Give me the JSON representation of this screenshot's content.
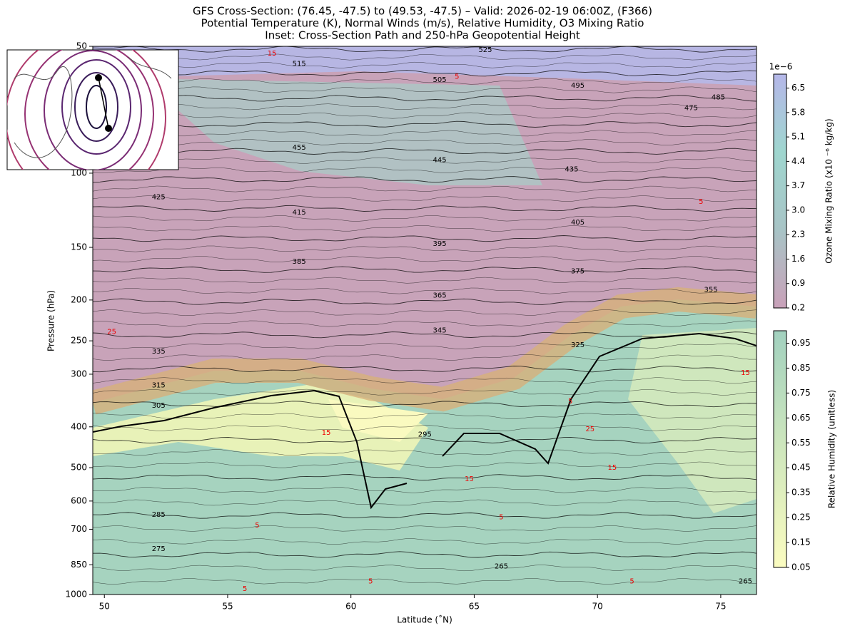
{
  "chart_data": {
    "type": "cross-section",
    "title": [
      "GFS Cross-Section: (76.45, -47.5) to (49.53, -47.5) – Valid: 2026-02-19 06:00Z, (F366)",
      "Potential Temperature (K), Normal Winds (m/s), Relative Humidity, O3 Mixing Ratio",
      "Inset: Cross-Section Path and 250-hPa Geopotential Height"
    ],
    "xlabel": "Latitude (˚N)",
    "ylabel": "Pressure (hPa)",
    "xlim": [
      49.53,
      76.45
    ],
    "xticks": [
      50,
      55,
      60,
      65,
      70,
      75
    ],
    "ylim": [
      1000,
      50
    ],
    "ylog": true,
    "yticks": [
      50,
      100,
      150,
      200,
      250,
      300,
      400,
      500,
      600,
      700,
      850,
      1000
    ],
    "theta_labels": [
      {
        "lat": 65.45,
        "p": 51,
        "value": 525
      },
      {
        "lat": 57.9,
        "p": 55,
        "value": 515
      },
      {
        "lat": 63.6,
        "p": 60,
        "value": 505
      },
      {
        "lat": 69.2,
        "p": 62,
        "value": 495
      },
      {
        "lat": 74.9,
        "p": 66,
        "value": 485
      },
      {
        "lat": 73.8,
        "p": 70,
        "value": 475
      },
      {
        "lat": 57.9,
        "p": 87,
        "value": 455
      },
      {
        "lat": 63.6,
        "p": 93,
        "value": 445
      },
      {
        "lat": 68.95,
        "p": 98,
        "value": 435
      },
      {
        "lat": 52.2,
        "p": 114,
        "value": 425
      },
      {
        "lat": 57.9,
        "p": 124,
        "value": 415
      },
      {
        "lat": 69.2,
        "p": 131,
        "value": 405
      },
      {
        "lat": 63.6,
        "p": 147,
        "value": 395
      },
      {
        "lat": 57.9,
        "p": 162,
        "value": 385
      },
      {
        "lat": 69.2,
        "p": 171,
        "value": 375
      },
      {
        "lat": 63.6,
        "p": 195,
        "value": 365
      },
      {
        "lat": 74.6,
        "p": 189,
        "value": 355
      },
      {
        "lat": 63.6,
        "p": 236,
        "value": 345
      },
      {
        "lat": 52.2,
        "p": 265,
        "value": 335
      },
      {
        "lat": 69.2,
        "p": 256,
        "value": 325
      },
      {
        "lat": 52.2,
        "p": 319,
        "value": 315
      },
      {
        "lat": 52.2,
        "p": 356,
        "value": 305
      },
      {
        "lat": 63.0,
        "p": 417,
        "value": 295
      },
      {
        "lat": 52.2,
        "p": 647,
        "value": 285
      },
      {
        "lat": 52.2,
        "p": 780,
        "value": 275
      },
      {
        "lat": 66.1,
        "p": 858,
        "value": 265
      },
      {
        "lat": 76.0,
        "p": 930,
        "value": 265
      }
    ],
    "wind_labels": [
      {
        "lat": 56.8,
        "p": 52,
        "value": 15
      },
      {
        "lat": 64.3,
        "p": 59,
        "value": 5
      },
      {
        "lat": 50.3,
        "p": 238,
        "value": 25
      },
      {
        "lat": 59.0,
        "p": 413,
        "value": 15
      },
      {
        "lat": 69.7,
        "p": 405,
        "value": 25
      },
      {
        "lat": 70.6,
        "p": 500,
        "value": 15
      },
      {
        "lat": 64.8,
        "p": 532,
        "value": 15
      },
      {
        "lat": 66.1,
        "p": 655,
        "value": 5
      },
      {
        "lat": 56.2,
        "p": 685,
        "value": 5
      },
      {
        "lat": 68.9,
        "p": 348,
        "value": 5
      },
      {
        "lat": 76.0,
        "p": 298,
        "value": 15
      },
      {
        "lat": 74.2,
        "p": 117,
        "value": 5
      },
      {
        "lat": 55.7,
        "p": 970,
        "value": 5
      },
      {
        "lat": 60.8,
        "p": 930,
        "value": 5
      },
      {
        "lat": 71.4,
        "p": 930,
        "value": 5
      }
    ],
    "ozone_colorbar": {
      "label": "Ozone Mixing Ratio (x10 ⁻⁶ kg/kg)",
      "offset_label": "1e−6",
      "colors": [
        "#c9a1b9",
        "#a8c4c6",
        "#9fd6cf",
        "#b5b7e9"
      ],
      "ylim": [
        0.2,
        6.9
      ],
      "yticks": [
        0.2,
        0.9,
        1.6,
        2.3,
        {
          "value": 3,
          "label": "3.0"
        },
        3.7,
        4.4,
        5.1,
        5.8,
        6.5
      ]
    },
    "rh_colorbar": {
      "label": "Relative Humidity (unitless)",
      "colors": [
        "#fbfcc0",
        "#cfe7bd",
        "#a2d1bf"
      ],
      "ylim": [
        0.05,
        1.0
      ],
      "yticks": [
        0.05,
        0.15,
        0.25,
        0.35,
        0.45,
        0.55,
        0.65,
        0.75,
        0.85,
        0.95
      ]
    }
  }
}
